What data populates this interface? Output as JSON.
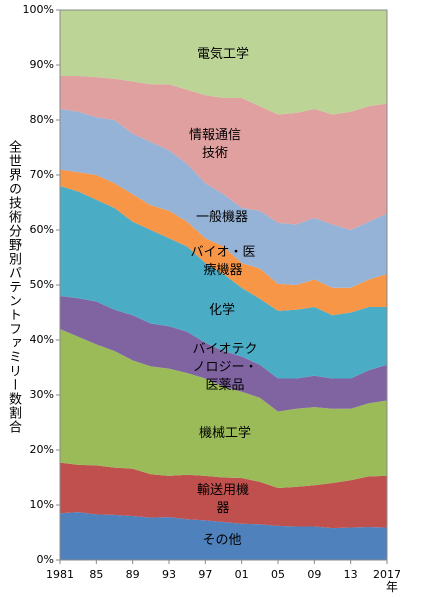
{
  "chart_data": {
    "type": "stacked-area",
    "y_label": "全世界の技術分野別パテントファミリー数割合",
    "x_label": "年",
    "x": [
      1981,
      1983,
      1985,
      1987,
      1989,
      1991,
      1993,
      1995,
      1997,
      1999,
      2001,
      2003,
      2005,
      2007,
      2009,
      2011,
      2013,
      2015,
      2017
    ],
    "xlim": [
      1981,
      2017
    ],
    "xticks": [
      {
        "value": 1981,
        "label": "1981"
      },
      {
        "value": 1985,
        "label": "85"
      },
      {
        "value": 1989,
        "label": "89"
      },
      {
        "value": 1993,
        "label": "93"
      },
      {
        "value": 1997,
        "label": "97"
      },
      {
        "value": 2001,
        "label": "01"
      },
      {
        "value": 2005,
        "label": "05"
      },
      {
        "value": 2009,
        "label": "09"
      },
      {
        "value": 2013,
        "label": "13"
      },
      {
        "value": 2017,
        "label": "2017"
      }
    ],
    "ylim": [
      0,
      100
    ],
    "yticks": [
      {
        "value": 0,
        "label": "0%"
      },
      {
        "value": 10,
        "label": "10%"
      },
      {
        "value": 20,
        "label": "20%"
      },
      {
        "value": 30,
        "label": "30%"
      },
      {
        "value": 40,
        "label": "40%"
      },
      {
        "value": 50,
        "label": "50%"
      },
      {
        "value": 60,
        "label": "60%"
      },
      {
        "value": 70,
        "label": "70%"
      },
      {
        "value": 80,
        "label": "80%"
      },
      {
        "value": 90,
        "label": "90%"
      },
      {
        "value": 100,
        "label": "100%"
      }
    ],
    "series": [
      {
        "name": "その他",
        "color": "#4f81bd",
        "values": [
          8.5,
          8.7,
          8.3,
          8.2,
          8,
          7.7,
          7.8,
          7.4,
          7.2,
          6.9,
          6.6,
          6.5,
          6.2,
          6.1,
          6.1,
          5.8,
          5.9,
          6,
          5.9
        ]
      },
      {
        "name": "輸送用機\n器",
        "color": "#c0504d",
        "values": [
          9.2,
          8.6,
          8.9,
          8.6,
          8.6,
          7.9,
          7.5,
          8.1,
          8.1,
          8.1,
          8.3,
          7.7,
          6.9,
          7.2,
          7.5,
          8.2,
          8.6,
          9.2,
          9.4
        ]
      },
      {
        "name": "機械工学",
        "color": "#9bbb59",
        "values": [
          24.3,
          23.3,
          22,
          21.2,
          19.7,
          19.6,
          19.5,
          18.5,
          17.7,
          16.5,
          15.7,
          15.3,
          13.9,
          14.2,
          14.2,
          13.5,
          13,
          13.3,
          13.7
        ]
      },
      {
        "name": "バイオテク\nノロジー・\n医薬品",
        "color": "#8064a2",
        "values": [
          6,
          7,
          7.8,
          7.5,
          8.2,
          7.8,
          7.7,
          7.5,
          6.5,
          6.5,
          6.4,
          6,
          6,
          5.5,
          5.7,
          5.5,
          5.5,
          6,
          6.5
        ]
      },
      {
        "name": "化学",
        "color": "#4bacc6",
        "values": [
          20,
          19.4,
          18.5,
          18.5,
          17,
          17,
          16,
          15.5,
          14.5,
          14,
          12.5,
          12,
          12.3,
          12.5,
          12.5,
          11.5,
          12,
          11.5,
          10.5
        ]
      },
      {
        "name": "バイオ・医\n療機器",
        "color": "#f79646",
        "values": [
          3,
          3.5,
          4.5,
          4.5,
          5,
          4.5,
          5,
          4.5,
          4.5,
          5,
          4.5,
          5.5,
          4.9,
          4.5,
          5,
          5,
          4.5,
          5,
          6
        ]
      },
      {
        "name": "一般機器",
        "color": "#95b3d7",
        "values": [
          11,
          11,
          10.5,
          11.5,
          11,
          11.5,
          11,
          10.5,
          10,
          9.5,
          10,
          10.5,
          11.1,
          11,
          11.2,
          11.5,
          10.5,
          10.5,
          11
        ]
      },
      {
        "name": "情報通信\n技術",
        "color": "#e0a0a0",
        "values": [
          6,
          6.5,
          7.3,
          7.5,
          9.5,
          10.5,
          12,
          13.5,
          16,
          17.5,
          20,
          19,
          19.7,
          20.3,
          19.8,
          20,
          21.5,
          21,
          20
        ]
      },
      {
        "name": "電気工学",
        "color": "#bcd596",
        "values": [
          12,
          12,
          12.2,
          12.5,
          13,
          13.5,
          13.5,
          14.5,
          15.5,
          16,
          16,
          17.5,
          19,
          18.7,
          18,
          19,
          18.5,
          17.5,
          17
        ]
      }
    ]
  }
}
